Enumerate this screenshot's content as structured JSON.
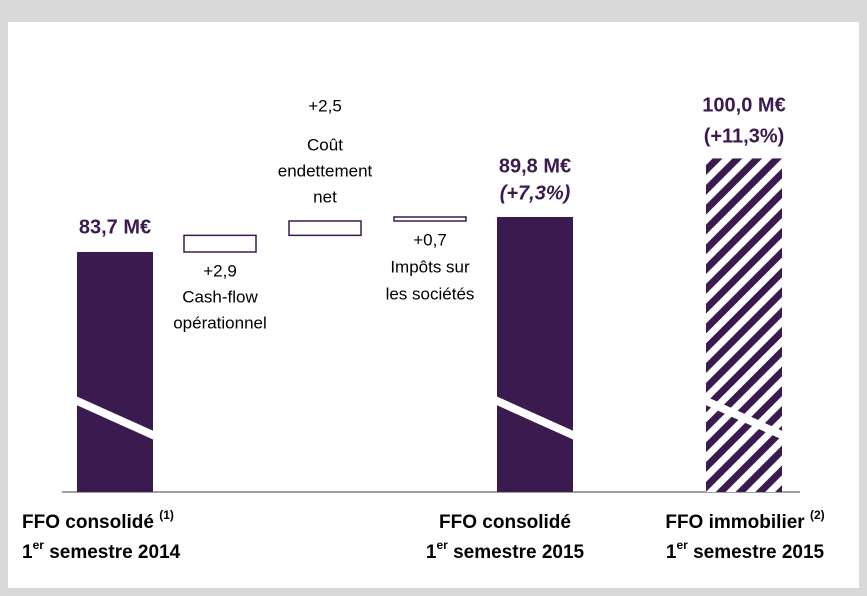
{
  "chart_data": {
    "type": "waterfall",
    "color": "#3b1a4f",
    "measures": [
      "absolute",
      "relative",
      "relative",
      "relative",
      "total",
      "absolute"
    ],
    "patterns": [
      null,
      null,
      null,
      null,
      null,
      "hatch"
    ],
    "values": [
      83.7,
      2.9,
      2.5,
      0.7,
      89.8,
      100.0
    ],
    "value_labels": [
      "83,7 M€",
      "+2,9",
      "+2,5",
      "+0,7",
      "89,8 M€",
      "100,0 M€"
    ],
    "changes": [
      null,
      null,
      null,
      null,
      7.3,
      11.3
    ],
    "change_labels": [
      null,
      null,
      null,
      null,
      "(+7,3%)",
      "(+11,3%)"
    ],
    "categories": [
      {
        "name": "FFO consolidé",
        "note": "(1)",
        "ordinal": "1",
        "ordinal_sup": "er",
        "period": "semestre 2014"
      },
      {
        "lines": [
          "Cash-flow",
          "opérationnel"
        ]
      },
      {
        "lines": [
          "Coût",
          "endettement",
          "net"
        ]
      },
      {
        "lines": [
          "Impôts sur",
          "les sociétés"
        ]
      },
      {
        "name": "FFO consolidé",
        "ordinal": "1",
        "ordinal_sup": "er",
        "period": "semestre 2015"
      },
      {
        "name": "FFO immobilier",
        "note": "(2)",
        "ordinal": "1",
        "ordinal_sup": "er",
        "period": "semestre 2015"
      }
    ],
    "axis_break": true
  }
}
